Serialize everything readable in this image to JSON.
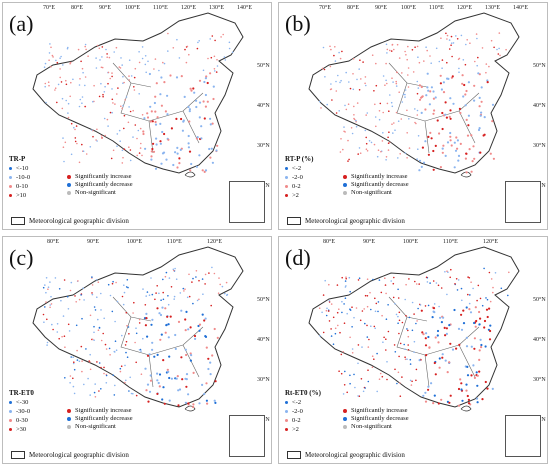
{
  "colors": {
    "sig_increase": "#d62020",
    "sig_decrease": "#1f6fd6",
    "pos_small": "#f08a8a",
    "neg_small": "#8ab4ef",
    "outline": "#333333",
    "division": "#666666"
  },
  "top_lon_labels": [
    "70°E",
    "80°E",
    "90°E",
    "100°E",
    "110°E",
    "120°E",
    "130°E",
    "140°E"
  ],
  "bottom_lon_labels": [
    "80°E",
    "90°E",
    "100°E",
    "110°E",
    "120°E"
  ],
  "lat_labels": [
    "50°N",
    "40°N",
    "30°N",
    "20°N"
  ],
  "panels": [
    {
      "id": "a",
      "label": "(a)",
      "legend_title": "TR-P",
      "legend_classes": [
        "<-10",
        "-10-0",
        "0-10",
        ">10"
      ],
      "sig_increase": "Significantly increase",
      "sig_decrease": "Significantly decrease",
      "non_sig": "Non-significant",
      "division": "Meteorological geographic division"
    },
    {
      "id": "b",
      "label": "(b)",
      "legend_title": "RT-P (%)",
      "legend_classes": [
        "<-2",
        "-2-0",
        "0-2",
        ">2"
      ],
      "sig_increase": "Significantly increase",
      "sig_decrease": "Significantly decrease",
      "non_sig": "Non-significant",
      "division": "Meteorological geographic division"
    },
    {
      "id": "c",
      "label": "(c)",
      "legend_title": "TR-ET0",
      "legend_classes": [
        "<-30",
        "-30-0",
        "0-30",
        ">30"
      ],
      "sig_increase": "Significantly increase",
      "sig_decrease": "Significantly decrease",
      "non_sig": "Non-significant",
      "division": "Meteorological geographic division"
    },
    {
      "id": "d",
      "label": "(d)",
      "legend_title": "Rt-ET0 (%)",
      "legend_classes": [
        "<-2",
        "-2-0",
        "0-2",
        ">2"
      ],
      "sig_increase": "Significantly increase",
      "sig_decrease": "Significantly decrease",
      "non_sig": "Non-significant",
      "division": "Meteorological geographic division"
    }
  ]
}
